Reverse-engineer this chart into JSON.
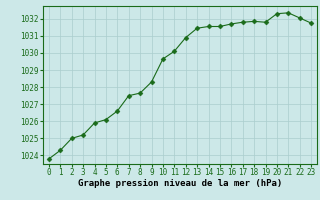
{
  "hours": [
    0,
    1,
    2,
    3,
    4,
    5,
    6,
    7,
    8,
    9,
    10,
    11,
    12,
    13,
    14,
    15,
    16,
    17,
    18,
    19,
    20,
    21,
    22,
    23
  ],
  "pressure": [
    1023.8,
    1024.3,
    1025.0,
    1025.2,
    1025.9,
    1026.1,
    1026.6,
    1027.5,
    1027.65,
    1028.3,
    1029.65,
    1030.1,
    1030.9,
    1031.45,
    1031.55,
    1031.55,
    1031.7,
    1031.8,
    1031.85,
    1031.8,
    1032.3,
    1032.35,
    1032.05,
    1031.75
  ],
  "line_color": "#1a6b1a",
  "marker_color": "#1a6b1a",
  "bg_color": "#cce8e8",
  "grid_color": "#aacece",
  "xlabel": "Graphe pression niveau de la mer (hPa)",
  "ylim": [
    1023.5,
    1032.75
  ],
  "xlim": [
    -0.5,
    23.5
  ],
  "yticks": [
    1024,
    1025,
    1026,
    1027,
    1028,
    1029,
    1030,
    1031,
    1032
  ],
  "xticks": [
    0,
    1,
    2,
    3,
    4,
    5,
    6,
    7,
    8,
    9,
    10,
    11,
    12,
    13,
    14,
    15,
    16,
    17,
    18,
    19,
    20,
    21,
    22,
    23
  ],
  "tick_fontsize": 5.5,
  "xlabel_fontsize": 6.5,
  "marker_size": 2.5,
  "line_width": 0.8
}
